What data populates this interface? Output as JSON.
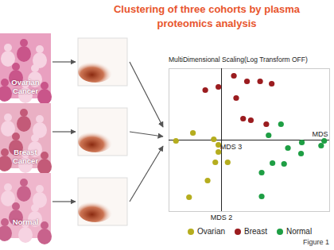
{
  "figure": {
    "title": "Clustering of three cohorts by plasma proteomics analysis",
    "panels": [
      "Ovarian Cancer",
      "Breast Cancer",
      "Normal"
    ],
    "caption": "Figure 1"
  },
  "chart_data": {
    "type": "scatter",
    "title": "MultiDimensional Scaling(Log Transform OFF)",
    "x_label": "MDS",
    "y_label": "MDS 2",
    "annotations": [
      "MDS 3"
    ],
    "xlim": [
      -68,
      140
    ],
    "ylim": [
      -90,
      90
    ],
    "xticks": [
      0
    ],
    "yticks": [
      0
    ],
    "tick_labels": false,
    "legend": "bottom",
    "series": [
      {
        "name": "Ovarian",
        "color": "#b5ad1e",
        "x": [
          -59,
          -37,
          -10,
          -4,
          -4,
          -8,
          8,
          -18,
          -42
        ],
        "values": [
          -1,
          9,
          1,
          -6,
          -15,
          -28,
          -28,
          -51,
          -72
        ]
      },
      {
        "name": "Breast",
        "color": "#9b1c1f",
        "x": [
          -21,
          -4,
          16,
          19,
          33,
          50,
          65,
          28,
          38,
          58
        ],
        "values": [
          63,
          67,
          81,
          53,
          74,
          74,
          71,
          27,
          25,
          20
        ]
      },
      {
        "name": "Normal",
        "color": "#1e9e44",
        "x": [
          77,
          61,
          104,
          133,
          129,
          86,
          103,
          81,
          66,
          52,
          52
        ],
        "values": [
          20,
          6,
          -3,
          -1,
          -7,
          -10,
          -17,
          -30,
          -29,
          -41,
          -71
        ]
      }
    ]
  }
}
